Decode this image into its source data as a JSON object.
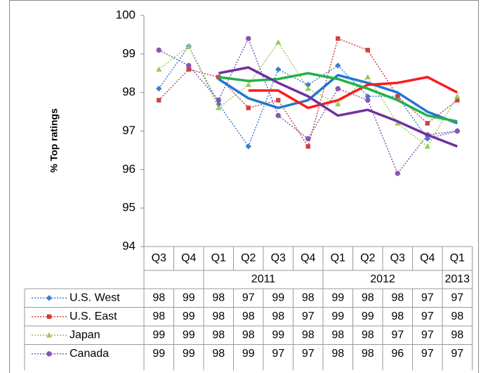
{
  "chart_data": {
    "type": "line",
    "y_label": "% Top ratings",
    "ylim": [
      94,
      100
    ],
    "yticks": [
      94,
      95,
      96,
      97,
      98,
      99,
      100
    ],
    "grid": false,
    "categories": [
      "Q3",
      "Q4",
      "Q1",
      "Q2",
      "Q3",
      "Q4",
      "Q1",
      "Q2",
      "Q3",
      "Q4",
      "Q1"
    ],
    "year_groups": [
      {
        "label": "2011",
        "from": 2,
        "to": 5
      },
      {
        "label": "2012",
        "from": 6,
        "to": 9
      },
      {
        "label": "2013",
        "from": 10,
        "to": 10
      }
    ],
    "series": [
      {
        "name": "U.S. West",
        "color": "#3a7fd0",
        "marker": "diamond",
        "values": [
          98.1,
          99.2,
          97.7,
          96.6,
          98.6,
          98.2,
          98.7,
          97.9,
          97.9,
          96.8,
          97.0
        ],
        "value_labels": [
          "98",
          "99",
          "98",
          "97",
          "99",
          "98",
          "99",
          "98",
          "98",
          "97",
          "97"
        ]
      },
      {
        "name": "U.S. East",
        "color": "#d04040",
        "marker": "square",
        "values": [
          97.8,
          98.6,
          98.4,
          97.6,
          97.8,
          96.6,
          99.4,
          99.1,
          97.9,
          97.2,
          97.8
        ],
        "value_labels": [
          "98",
          "99",
          "98",
          "98",
          "98",
          "97",
          "99",
          "99",
          "98",
          "97",
          "98"
        ]
      },
      {
        "name": "Japan",
        "color": "#9bc95a",
        "marker": "triangle",
        "values": [
          98.6,
          99.2,
          97.6,
          98.2,
          99.3,
          98.1,
          97.7,
          98.4,
          97.2,
          96.6,
          97.9
        ],
        "value_labels": [
          "99",
          "99",
          "98",
          "98",
          "99",
          "98",
          "98",
          "98",
          "97",
          "97",
          "98"
        ]
      },
      {
        "name": "Canada",
        "color": "#8656b0",
        "marker": "circle",
        "values": [
          99.1,
          98.7,
          97.8,
          99.4,
          97.4,
          96.8,
          98.1,
          97.8,
          95.9,
          96.9,
          97.0
        ],
        "value_labels": [
          "99",
          "99",
          "98",
          "99",
          "97",
          "97",
          "98",
          "98",
          "96",
          "97",
          "97"
        ]
      }
    ],
    "trend_series": [
      {
        "color": "#1f78d1",
        "values": [
          null,
          null,
          98.35,
          97.85,
          97.6,
          97.8,
          98.45,
          98.25,
          98.0,
          97.5,
          97.2
        ]
      },
      {
        "color": "#ff1a1a",
        "values": [
          null,
          null,
          null,
          98.05,
          98.05,
          97.6,
          97.8,
          98.2,
          98.25,
          98.4,
          98.0
        ]
      },
      {
        "color": "#22b14c",
        "values": [
          null,
          null,
          98.4,
          98.3,
          98.35,
          98.5,
          98.35,
          98.1,
          97.8,
          97.4,
          97.25
        ]
      },
      {
        "color": "#7030a0",
        "values": [
          null,
          null,
          98.5,
          98.65,
          98.25,
          97.9,
          97.4,
          97.55,
          97.25,
          96.9,
          96.6
        ]
      }
    ]
  }
}
